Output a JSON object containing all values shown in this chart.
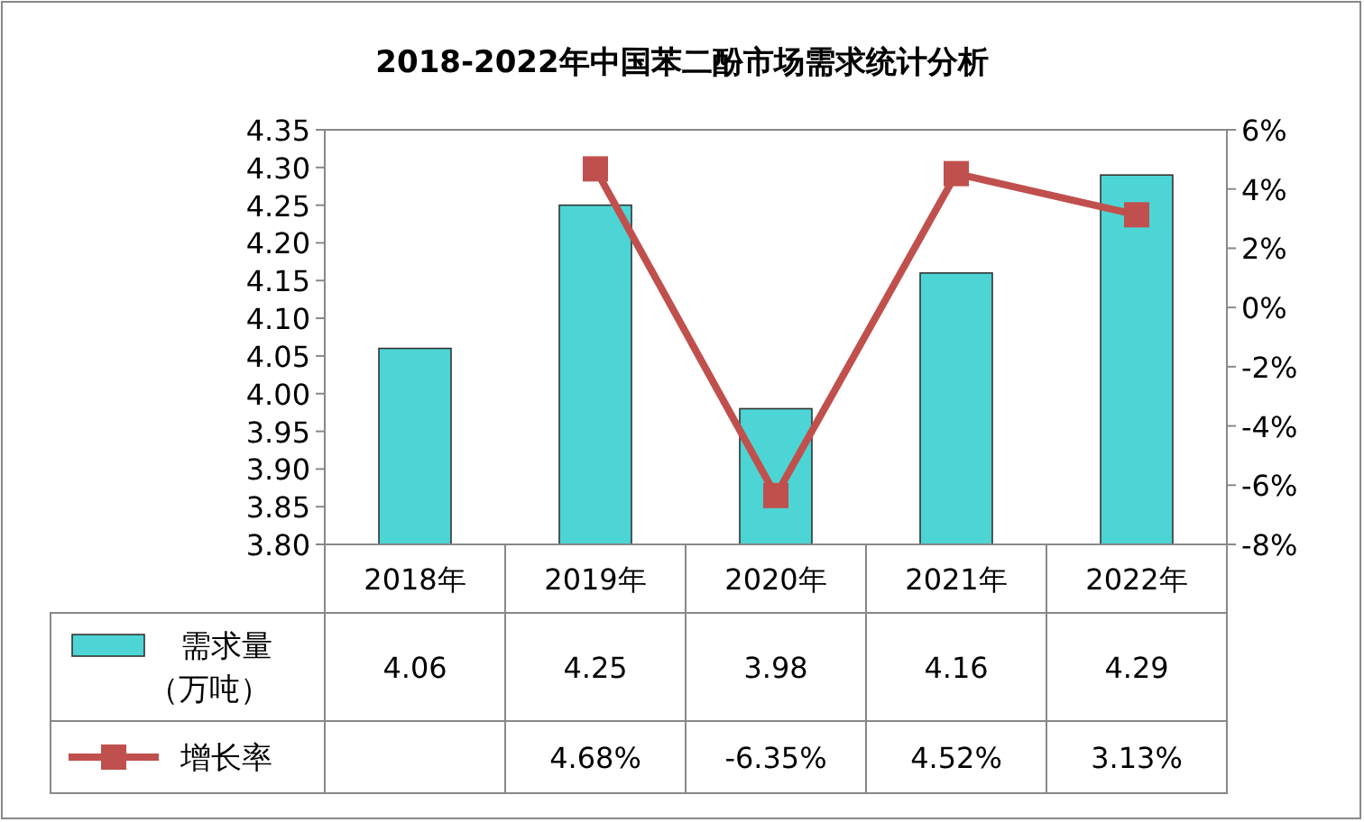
{
  "chart_data": {
    "type": "bar",
    "title": "2018-2022年中国苯二酚市场需求统计分析",
    "categories": [
      "2018年",
      "2019年",
      "2020年",
      "2021年",
      "2022年"
    ],
    "series": [
      {
        "name": "需求量（万吨）",
        "color": "#4dd4d4",
        "values": [
          4.06,
          4.25,
          3.98,
          4.16,
          4.29
        ],
        "value_labels": [
          "4.06",
          "4.25",
          "3.98",
          "4.16",
          "4.29"
        ]
      },
      {
        "name": "增长率",
        "type": "line",
        "axis": "y2",
        "color": "#c0504d",
        "values": [
          null,
          4.68,
          -6.35,
          4.52,
          3.13
        ],
        "value_labels": [
          null,
          "4.68%",
          "-6.35%",
          "4.52%",
          "3.13%"
        ]
      }
    ],
    "ylim": [
      3.8,
      4.35
    ],
    "yticks": [
      {
        "value": 3.8,
        "label": "3.80"
      },
      {
        "value": 3.85,
        "label": "3.85"
      },
      {
        "value": 3.9,
        "label": "3.90"
      },
      {
        "value": 3.95,
        "label": "3.95"
      },
      {
        "value": 4.0,
        "label": "4.00"
      },
      {
        "value": 4.05,
        "label": "4.05"
      },
      {
        "value": 4.1,
        "label": "4.10"
      },
      {
        "value": 4.15,
        "label": "4.15"
      },
      {
        "value": 4.2,
        "label": "4.20"
      },
      {
        "value": 4.25,
        "label": "4.25"
      },
      {
        "value": 4.3,
        "label": "4.30"
      },
      {
        "value": 4.35,
        "label": "4.35"
      }
    ],
    "y2lim": [
      -8,
      6
    ],
    "y2ticks": [
      {
        "value": -8,
        "label": "-8%"
      },
      {
        "value": -6,
        "label": "-6%"
      },
      {
        "value": -4,
        "label": "-4%"
      },
      {
        "value": -2,
        "label": "-2%"
      },
      {
        "value": 0,
        "label": "0%"
      },
      {
        "value": 2,
        "label": "2%"
      },
      {
        "value": 4,
        "label": "4%"
      },
      {
        "value": 6,
        "label": "6%"
      }
    ],
    "marker": "square",
    "legend": "bottom",
    "grid": false
  }
}
